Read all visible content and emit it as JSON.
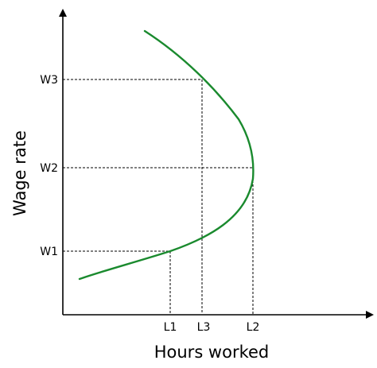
{
  "diagram": {
    "kind": "backward-bending labor supply curve",
    "x_axis_label": "Hours worked",
    "y_axis_label": "Wage rate",
    "y_ticks": [
      "W1",
      "W2",
      "W3"
    ],
    "x_ticks": [
      "L1",
      "L3",
      "L2"
    ],
    "curve_color": "#1a8a2e",
    "guide_style": "dashed"
  }
}
